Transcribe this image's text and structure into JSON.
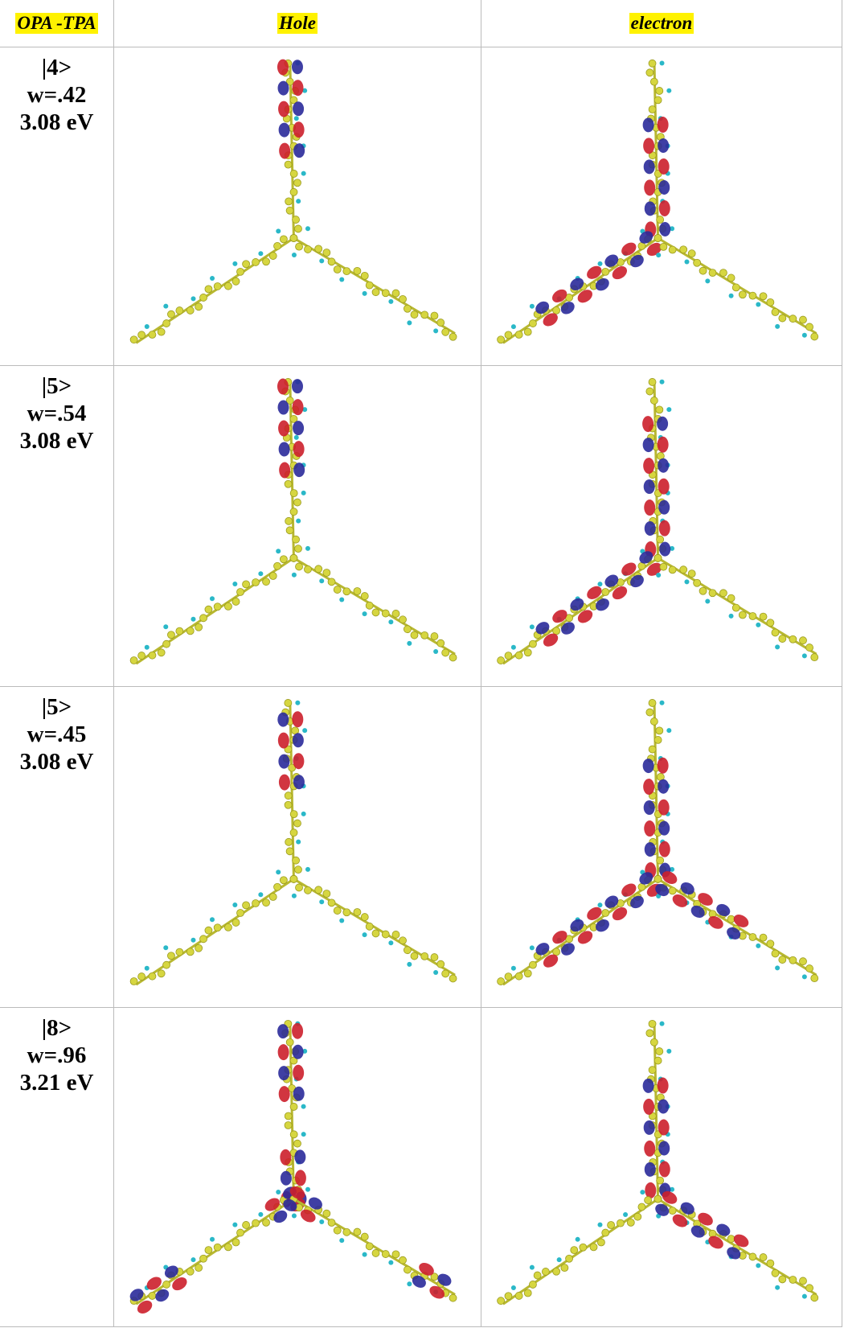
{
  "table": {
    "header": [
      "OPA -TPA",
      "Hole",
      "electron"
    ],
    "rows": [
      {
        "state": "|4>",
        "weight": "w=.42",
        "energy": "3.08 eV"
      },
      {
        "state": "|5>",
        "weight": "w=.54",
        "energy": "3.08 eV"
      },
      {
        "state": "|5>",
        "weight": "w=.45",
        "energy": "3.08 eV"
      },
      {
        "state": "|8>",
        "weight": "w=.96",
        "energy": "3.21 eV"
      }
    ]
  }
}
